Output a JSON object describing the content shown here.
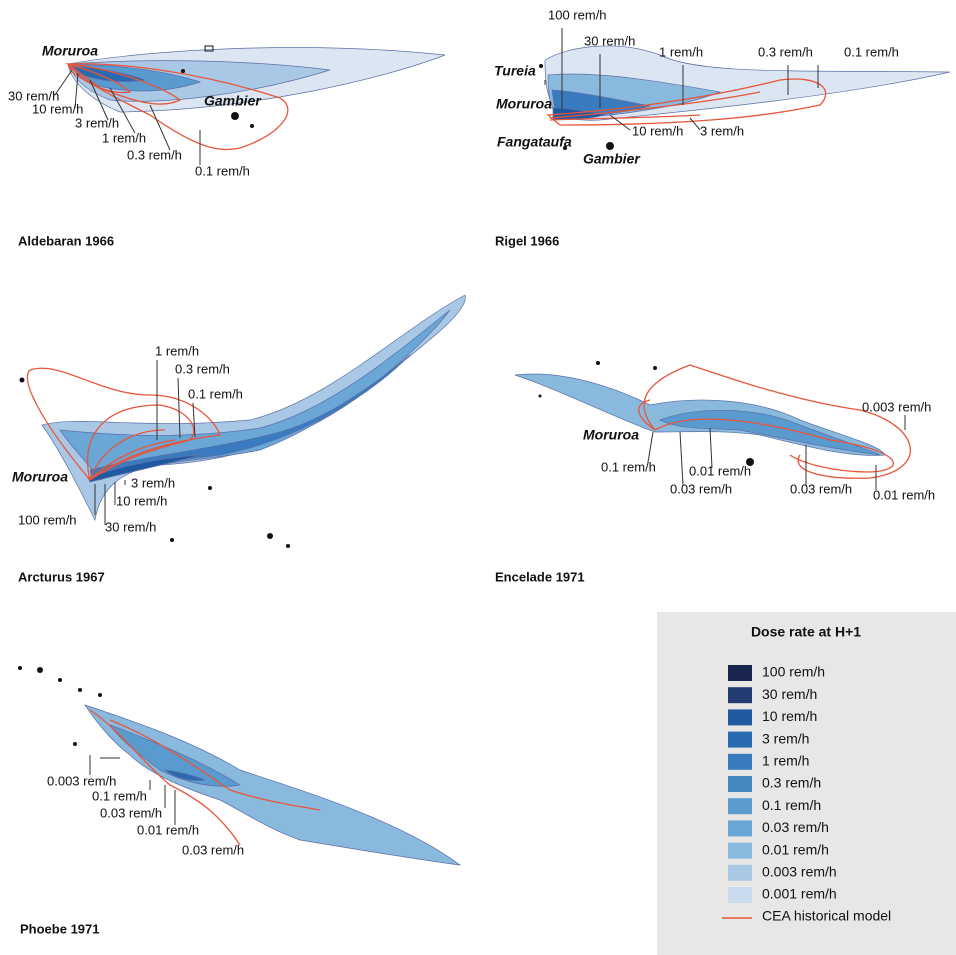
{
  "panels": [
    {
      "title": "Aldebaran 1966",
      "places": [
        "Moruroa",
        "Gambier"
      ],
      "labels": [
        "30 rem/h",
        "10 rem/h",
        "3 rem/h",
        "1 rem/h",
        "0.3 rem/h",
        "0.1 rem/h"
      ]
    },
    {
      "title": "Rigel 1966",
      "places": [
        "Tureia",
        "Moruroa",
        "Fangataufa",
        "Gambier"
      ],
      "labels": [
        "100 rem/h",
        "30 rem/h",
        "1 rem/h",
        "0.3 rem/h",
        "0.1 rem/h",
        "10 rem/h",
        "3 rem/h"
      ]
    },
    {
      "title": "Arcturus 1967",
      "places": [
        "Moruroa"
      ],
      "labels": [
        "1 rem/h",
        "0.3 rem/h",
        "0.1 rem/h",
        "3 rem/h",
        "10 rem/h",
        "100 rem/h",
        "30 rem/h"
      ]
    },
    {
      "title": "Encelade 1971",
      "places": [
        "Moruroa"
      ],
      "labels": [
        "0.003 rem/h",
        "0.1 rem/h",
        "0.01 rem/h",
        "0.03 rem/h",
        "0.03 rem/h",
        "0.01 rem/h"
      ]
    },
    {
      "title": "Phoebe 1971",
      "places": [],
      "labels": [
        "0.003 rem/h",
        "0.1 rem/h",
        "0.03 rem/h",
        "0.01 rem/h",
        "0.03 rem/h"
      ]
    }
  ],
  "legend": {
    "title": "Dose rate at H+1",
    "items": [
      "100 rem/h",
      "30 rem/h",
      "10 rem/h",
      "3 rem/h",
      "1 rem/h",
      "0.3 rem/h",
      "0.1 rem/h",
      "0.03 rem/h",
      "0.01 rem/h",
      "0.003 rem/h",
      "0.001 rem/h"
    ],
    "model": "CEA historical model"
  }
}
